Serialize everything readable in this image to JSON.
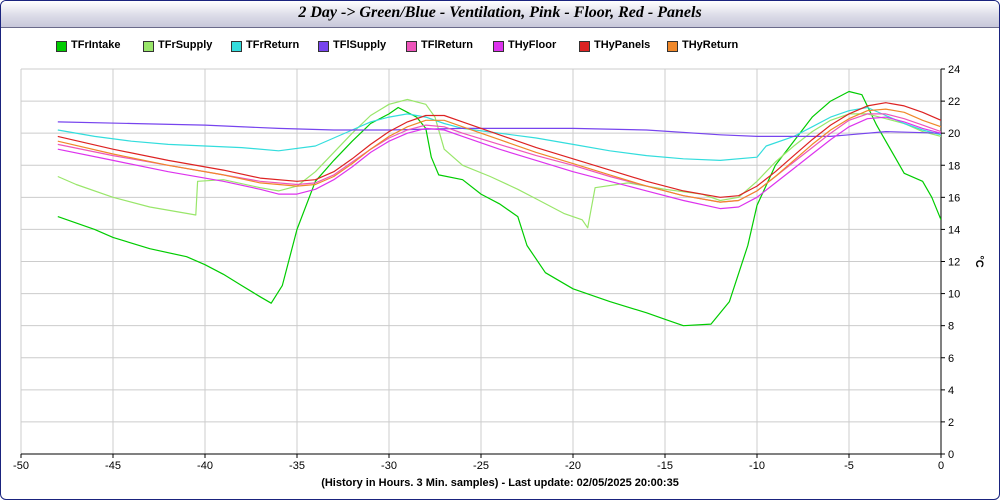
{
  "title": "2 Day -> Green/Blue - Ventilation, Pink - Floor, Red - Panels",
  "footer": "(History in Hours. 3 Min. samples) - Last update: 02/05/2025 20:00:35",
  "chart_data": {
    "type": "line",
    "title": "2 Day -> Green/Blue - Ventilation, Pink - Floor, Red - Panels",
    "xlabel": "(History in Hours. 3 Min. samples) - Last update: 02/05/2025 20:00:35",
    "ylabel": "°C",
    "xlim": [
      -50,
      0
    ],
    "ylim": [
      0,
      24
    ],
    "xticks": [
      -50,
      -45,
      -40,
      -35,
      -30,
      -25,
      -20,
      -15,
      -10,
      -5,
      0
    ],
    "yticks": [
      0,
      2,
      4,
      6,
      8,
      10,
      12,
      14,
      16,
      18,
      20,
      22,
      24
    ],
    "grid": true,
    "legend_position": "top",
    "y_axis_side": "right",
    "series": [
      {
        "name": "TFrIntake",
        "color": "#00cc00",
        "points": [
          [
            -48,
            14.8
          ],
          [
            -46,
            14
          ],
          [
            -45,
            13.5
          ],
          [
            -43,
            12.8
          ],
          [
            -41,
            12.3
          ],
          [
            -40,
            11.8
          ],
          [
            -39,
            11.2
          ],
          [
            -38,
            10.5
          ],
          [
            -37,
            9.8
          ],
          [
            -36.4,
            9.4
          ],
          [
            -35.8,
            10.5
          ],
          [
            -35,
            14
          ],
          [
            -34,
            17
          ],
          [
            -33,
            18.3
          ],
          [
            -32,
            19.5
          ],
          [
            -31,
            20.6
          ],
          [
            -30,
            21.2
          ],
          [
            -29.5,
            21.6
          ],
          [
            -29,
            21.3
          ],
          [
            -28.5,
            21
          ],
          [
            -28,
            20.3
          ],
          [
            -27.7,
            18.5
          ],
          [
            -27.3,
            17.4
          ],
          [
            -26,
            17.1
          ],
          [
            -25,
            16.2
          ],
          [
            -24,
            15.6
          ],
          [
            -23,
            14.8
          ],
          [
            -22.5,
            13
          ],
          [
            -21.5,
            11.3
          ],
          [
            -20,
            10.3
          ],
          [
            -18,
            9.5
          ],
          [
            -16,
            8.8
          ],
          [
            -15,
            8.4
          ],
          [
            -14,
            8
          ],
          [
            -12.5,
            8.1
          ],
          [
            -11.5,
            9.5
          ],
          [
            -10.5,
            13
          ],
          [
            -10,
            15.5
          ],
          [
            -9,
            18
          ],
          [
            -8,
            19.5
          ],
          [
            -7,
            21
          ],
          [
            -6,
            22
          ],
          [
            -5,
            22.6
          ],
          [
            -4.3,
            22.4
          ],
          [
            -3.5,
            20.5
          ],
          [
            -3,
            19.5
          ],
          [
            -2.5,
            18.5
          ],
          [
            -2,
            17.5
          ],
          [
            -1,
            17
          ],
          [
            -0.5,
            16
          ],
          [
            0,
            14.6
          ]
        ]
      },
      {
        "name": "TFrSupply",
        "color": "#99e66a",
        "points": [
          [
            -48,
            17.3
          ],
          [
            -47,
            16.8
          ],
          [
            -45,
            16
          ],
          [
            -43,
            15.4
          ],
          [
            -41,
            15
          ],
          [
            -40.5,
            14.9
          ],
          [
            -40.4,
            17
          ],
          [
            -39,
            17.1
          ],
          [
            -37,
            16.6
          ],
          [
            -36,
            16.4
          ],
          [
            -35,
            16.7
          ],
          [
            -34,
            17.6
          ],
          [
            -33,
            18.8
          ],
          [
            -32,
            20
          ],
          [
            -31,
            21.1
          ],
          [
            -30,
            21.8
          ],
          [
            -29,
            22.1
          ],
          [
            -28,
            21.8
          ],
          [
            -27.5,
            21
          ],
          [
            -27,
            19
          ],
          [
            -26,
            18
          ],
          [
            -24.5,
            17.3
          ],
          [
            -23,
            16.5
          ],
          [
            -22,
            15.9
          ],
          [
            -20.5,
            15
          ],
          [
            -19.5,
            14.6
          ],
          [
            -19.2,
            14.1
          ],
          [
            -18.8,
            16.6
          ],
          [
            -17,
            16.9
          ],
          [
            -15,
            16.5
          ],
          [
            -13,
            16.2
          ],
          [
            -12,
            15.8
          ],
          [
            -11,
            16
          ],
          [
            -10,
            17
          ],
          [
            -9,
            18.2
          ],
          [
            -8,
            19.2
          ],
          [
            -7,
            20.1
          ],
          [
            -6,
            20.8
          ],
          [
            -5,
            21.2
          ],
          [
            -4,
            21.2
          ],
          [
            -3,
            20.9
          ],
          [
            -2,
            20.6
          ],
          [
            -1,
            20.1
          ],
          [
            0,
            19.8
          ]
        ]
      },
      {
        "name": "TFrReturn",
        "color": "#33dddd",
        "points": [
          [
            -48,
            20.2
          ],
          [
            -46,
            19.8
          ],
          [
            -44,
            19.5
          ],
          [
            -42,
            19.3
          ],
          [
            -40,
            19.2
          ],
          [
            -38,
            19.1
          ],
          [
            -36,
            18.9
          ],
          [
            -34,
            19.2
          ],
          [
            -33,
            19.7
          ],
          [
            -32,
            20.2
          ],
          [
            -31,
            20.7
          ],
          [
            -30,
            21
          ],
          [
            -29,
            21.2
          ],
          [
            -28,
            21
          ],
          [
            -27,
            20.6
          ],
          [
            -26,
            20.3
          ],
          [
            -24,
            20
          ],
          [
            -22,
            19.7
          ],
          [
            -20,
            19.3
          ],
          [
            -18,
            18.9
          ],
          [
            -16,
            18.6
          ],
          [
            -14,
            18.4
          ],
          [
            -12,
            18.3
          ],
          [
            -10,
            18.5
          ],
          [
            -9.5,
            19.2
          ],
          [
            -8,
            19.8
          ],
          [
            -7,
            20.4
          ],
          [
            -6,
            21
          ],
          [
            -5,
            21.4
          ],
          [
            -4,
            21.6
          ],
          [
            -3,
            21.1
          ],
          [
            -2,
            20.6
          ],
          [
            -1,
            20.2
          ],
          [
            0,
            19.9
          ]
        ]
      },
      {
        "name": "TFlSupply",
        "color": "#7744ee",
        "points": [
          [
            -48,
            20.7
          ],
          [
            -44,
            20.6
          ],
          [
            -40,
            20.5
          ],
          [
            -36,
            20.3
          ],
          [
            -33,
            20.2
          ],
          [
            -30,
            20.2
          ],
          [
            -26,
            20.3
          ],
          [
            -24,
            20.3
          ],
          [
            -20,
            20.3
          ],
          [
            -16,
            20.2
          ],
          [
            -12,
            19.9
          ],
          [
            -10,
            19.8
          ],
          [
            -8,
            19.8
          ],
          [
            -6,
            19.8
          ],
          [
            -5,
            19.9
          ],
          [
            -3,
            20.1
          ],
          [
            0,
            20
          ]
        ]
      },
      {
        "name": "TFlReturn",
        "color": "#ee55bb",
        "points": [
          [
            -48,
            19.3
          ],
          [
            -45,
            18.6
          ],
          [
            -42,
            18
          ],
          [
            -39,
            17.4
          ],
          [
            -37,
            17
          ],
          [
            -35,
            16.8
          ],
          [
            -34,
            16.9
          ],
          [
            -33,
            17.4
          ],
          [
            -32,
            18.2
          ],
          [
            -31,
            19
          ],
          [
            -30,
            19.7
          ],
          [
            -29,
            20.2
          ],
          [
            -28,
            20.5
          ],
          [
            -27,
            20.4
          ],
          [
            -26,
            20
          ],
          [
            -24,
            19.3
          ],
          [
            -22,
            18.6
          ],
          [
            -20,
            18
          ],
          [
            -18,
            17.3
          ],
          [
            -16,
            16.7
          ],
          [
            -14,
            16.1
          ],
          [
            -12,
            15.7
          ],
          [
            -11,
            15.8
          ],
          [
            -10,
            16.4
          ],
          [
            -9,
            17.3
          ],
          [
            -8,
            18.2
          ],
          [
            -7,
            19.1
          ],
          [
            -6,
            20
          ],
          [
            -5,
            20.8
          ],
          [
            -4,
            21.2
          ],
          [
            -3,
            21.2
          ],
          [
            -2,
            20.9
          ],
          [
            -1,
            20.5
          ],
          [
            0,
            20.1
          ]
        ]
      },
      {
        "name": "THyFloor",
        "color": "#dd33ee",
        "points": [
          [
            -48,
            19
          ],
          [
            -45,
            18.3
          ],
          [
            -42,
            17.6
          ],
          [
            -39,
            17
          ],
          [
            -37,
            16.5
          ],
          [
            -36,
            16.2
          ],
          [
            -35,
            16.2
          ],
          [
            -34,
            16.5
          ],
          [
            -33,
            17.1
          ],
          [
            -32,
            17.9
          ],
          [
            -31,
            18.8
          ],
          [
            -30,
            19.5
          ],
          [
            -29,
            20
          ],
          [
            -28,
            20.3
          ],
          [
            -27,
            20.2
          ],
          [
            -26,
            19.8
          ],
          [
            -24,
            19
          ],
          [
            -22,
            18.3
          ],
          [
            -20,
            17.6
          ],
          [
            -18,
            17
          ],
          [
            -16,
            16.4
          ],
          [
            -14,
            15.8
          ],
          [
            -12,
            15.3
          ],
          [
            -11,
            15.4
          ],
          [
            -10,
            16
          ],
          [
            -9,
            16.9
          ],
          [
            -8,
            17.8
          ],
          [
            -7,
            18.7
          ],
          [
            -6,
            19.6
          ],
          [
            -5,
            20.4
          ],
          [
            -4,
            20.9
          ],
          [
            -3,
            21
          ],
          [
            -2,
            20.7
          ],
          [
            -1,
            20.3
          ],
          [
            0,
            20
          ]
        ]
      },
      {
        "name": "THyPanels",
        "color": "#dd2222",
        "points": [
          [
            -48,
            19.8
          ],
          [
            -45,
            19
          ],
          [
            -42,
            18.3
          ],
          [
            -39,
            17.7
          ],
          [
            -37,
            17.2
          ],
          [
            -35,
            17
          ],
          [
            -34,
            17.1
          ],
          [
            -33,
            17.6
          ],
          [
            -32,
            18.4
          ],
          [
            -31,
            19.3
          ],
          [
            -30,
            20.1
          ],
          [
            -29,
            20.7
          ],
          [
            -28,
            21.1
          ],
          [
            -27,
            21.1
          ],
          [
            -26,
            20.7
          ],
          [
            -24,
            19.9
          ],
          [
            -22,
            19.1
          ],
          [
            -20,
            18.4
          ],
          [
            -18,
            17.7
          ],
          [
            -16,
            17
          ],
          [
            -14,
            16.4
          ],
          [
            -12,
            16
          ],
          [
            -11,
            16.1
          ],
          [
            -10,
            16.7
          ],
          [
            -9,
            17.6
          ],
          [
            -8,
            18.6
          ],
          [
            -7,
            19.6
          ],
          [
            -6,
            20.5
          ],
          [
            -5,
            21.2
          ],
          [
            -4,
            21.7
          ],
          [
            -3,
            21.9
          ],
          [
            -2,
            21.7
          ],
          [
            -1,
            21.3
          ],
          [
            0,
            20.8
          ]
        ]
      },
      {
        "name": "THyReturn",
        "color": "#f0882a",
        "points": [
          [
            -48,
            19.5
          ],
          [
            -45,
            18.7
          ],
          [
            -42,
            18
          ],
          [
            -39,
            17.4
          ],
          [
            -37,
            16.9
          ],
          [
            -35,
            16.7
          ],
          [
            -34,
            16.8
          ],
          [
            -33,
            17.3
          ],
          [
            -32,
            18.1
          ],
          [
            -31,
            19
          ],
          [
            -30,
            19.8
          ],
          [
            -29,
            20.4
          ],
          [
            -28,
            20.8
          ],
          [
            -27,
            20.8
          ],
          [
            -26,
            20.4
          ],
          [
            -24,
            19.6
          ],
          [
            -22,
            18.8
          ],
          [
            -20,
            18.1
          ],
          [
            -18,
            17.4
          ],
          [
            -16,
            16.7
          ],
          [
            -14,
            16.1
          ],
          [
            -12,
            15.7
          ],
          [
            -11,
            15.8
          ],
          [
            -10,
            16.4
          ],
          [
            -9,
            17.3
          ],
          [
            -8,
            18.3
          ],
          [
            -7,
            19.3
          ],
          [
            -6,
            20.2
          ],
          [
            -5,
            20.9
          ],
          [
            -4,
            21.4
          ],
          [
            -3,
            21.5
          ],
          [
            -2,
            21.3
          ],
          [
            -1,
            20.8
          ],
          [
            0,
            20.4
          ]
        ]
      }
    ]
  }
}
